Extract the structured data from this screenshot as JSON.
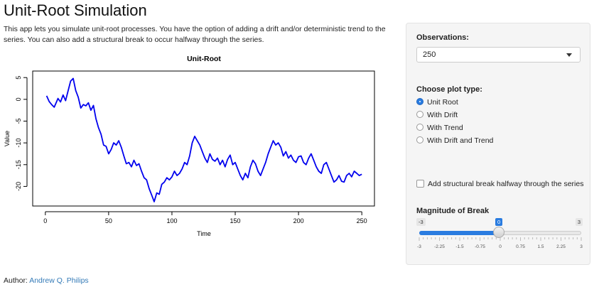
{
  "app": {
    "title": "Unit-Root Simulation",
    "description": "This app lets you simulate unit-root processes. You have the option of adding a drift and/or deterministic trend to the series. You can also add a structural break to occur halfway through the series.",
    "author_label": "Author:",
    "author_name": "Andrew Q. Philips"
  },
  "sidebar": {
    "observations_label": "Observations:",
    "observations_value": "250",
    "plot_type_label": "Choose plot type:",
    "plot_types": [
      "Unit Root",
      "With Drift",
      "With Trend",
      "With Drift and Trend"
    ],
    "plot_type_selected": "Unit Root",
    "break_checkbox_label": "Add structural break halfway through the series",
    "break_checked": false,
    "magnitude_label": "Magnitude of Break",
    "slider": {
      "min": -3,
      "max": 3,
      "value": 0,
      "min_label": "-3",
      "max_label": "3",
      "value_label": "0",
      "tick_labels": [
        "-3",
        "-2.25",
        "-1.5",
        "-0.75",
        "0",
        "0.75",
        "1.5",
        "2.25",
        "3"
      ]
    },
    "accent_color": "#2a7ce0"
  },
  "chart_data": {
    "type": "line",
    "title": "Unit-Root",
    "xlabel": "Time",
    "ylabel": "Value",
    "xlim": [
      0,
      250
    ],
    "ylim": [
      -24,
      6
    ],
    "xticks": [
      0,
      50,
      100,
      150,
      200,
      250
    ],
    "yticks": [
      5,
      0,
      -5,
      -10,
      -15,
      -20
    ],
    "line_color": "#0000ee",
    "series": [
      {
        "x": [
          1,
          3,
          5,
          7,
          10,
          12,
          14,
          16,
          18,
          20,
          22,
          24,
          26,
          28,
          30,
          32,
          34,
          36,
          38,
          40,
          42,
          44,
          46,
          48,
          50,
          52,
          54,
          56,
          58,
          60,
          62,
          64,
          66,
          68,
          70,
          72,
          74,
          76,
          78,
          80,
          82,
          84,
          86,
          88,
          90,
          92,
          94,
          96,
          98,
          100,
          102,
          104,
          106,
          108,
          110,
          112,
          114,
          116,
          118,
          120,
          122,
          124,
          126,
          128,
          130,
          132,
          134,
          136,
          138,
          140,
          142,
          144,
          146,
          148,
          150,
          152,
          154,
          156,
          158,
          160,
          162,
          164,
          166,
          168,
          170,
          172,
          174,
          176,
          178,
          180,
          182,
          184,
          186,
          188,
          190,
          192,
          194,
          196,
          198,
          200,
          202,
          204,
          206,
          208,
          210,
          212,
          214,
          216,
          218,
          220,
          222,
          224,
          226,
          228,
          230,
          232,
          234,
          236,
          238,
          240,
          242,
          244,
          246,
          248,
          250
        ],
        "y": [
          0.8,
          -0.5,
          -1.2,
          -1.8,
          0.2,
          -0.6,
          1.0,
          -0.3,
          2.0,
          4.2,
          4.8,
          2.0,
          0.5,
          -2.0,
          -1.2,
          -1.5,
          -0.8,
          -2.5,
          -1.4,
          -4.5,
          -6.5,
          -8.0,
          -10.5,
          -10.8,
          -12.5,
          -11.5,
          -10.0,
          -10.5,
          -9.5,
          -11.0,
          -13.0,
          -14.8,
          -14.5,
          -15.5,
          -14.0,
          -15.2,
          -14.8,
          -16.5,
          -18.0,
          -18.5,
          -20.5,
          -22.0,
          -23.5,
          -21.5,
          -21.8,
          -19.5,
          -19.0,
          -18.0,
          -18.5,
          -17.8,
          -16.5,
          -17.5,
          -17.0,
          -16.0,
          -14.5,
          -15.0,
          -13.0,
          -10.0,
          -8.5,
          -9.5,
          -10.5,
          -12.0,
          -13.5,
          -14.5,
          -12.5,
          -13.8,
          -14.2,
          -13.5,
          -15.0,
          -14.0,
          -15.5,
          -13.8,
          -12.8,
          -15.0,
          -14.5,
          -16.0,
          -17.5,
          -18.5,
          -17.0,
          -18.0,
          -15.5,
          -14.0,
          -14.8,
          -16.5,
          -17.5,
          -16.0,
          -14.5,
          -12.5,
          -11.0,
          -9.5,
          -10.5,
          -10.0,
          -11.0,
          -13.0,
          -12.0,
          -13.5,
          -12.8,
          -14.0,
          -14.5,
          -13.2,
          -13.0,
          -14.5,
          -15.0,
          -13.5,
          -12.5,
          -14.0,
          -15.5,
          -16.5,
          -17.0,
          -15.0,
          -14.5,
          -16.0,
          -17.5,
          -19.0,
          -18.5,
          -17.5,
          -18.8,
          -19.0,
          -17.5,
          -17.0,
          -17.8,
          -16.5,
          -17.0,
          -17.5,
          -17.2
        ]
      }
    ]
  }
}
